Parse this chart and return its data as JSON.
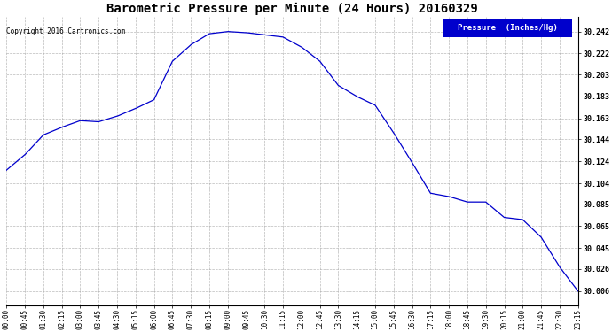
{
  "title": "Barometric Pressure per Minute (24 Hours) 20160329",
  "copyright": "Copyright 2016 Cartronics.com",
  "legend_label": "Pressure  (Inches/Hg)",
  "line_color": "#0000CC",
  "bg_color": "#ffffff",
  "grid_color": "#aaaaaa",
  "legend_bg": "#0000CC",
  "legend_text_color": "#ffffff",
  "y_ticks": [
    30.006,
    30.026,
    30.045,
    30.065,
    30.085,
    30.104,
    30.124,
    30.144,
    30.163,
    30.183,
    30.203,
    30.222,
    30.242
  ],
  "ylim": [
    29.993,
    30.255
  ],
  "x_tick_labels": [
    "00:00",
    "00:45",
    "01:30",
    "02:15",
    "03:00",
    "03:45",
    "04:30",
    "05:15",
    "06:00",
    "06:45",
    "07:30",
    "08:15",
    "09:00",
    "09:45",
    "10:30",
    "11:15",
    "12:00",
    "12:45",
    "13:30",
    "14:15",
    "15:00",
    "15:45",
    "16:30",
    "17:15",
    "18:00",
    "18:45",
    "19:30",
    "20:15",
    "21:00",
    "21:45",
    "22:30",
    "23:15"
  ],
  "keyframe_times": [
    0,
    45,
    90,
    135,
    180,
    225,
    270,
    315,
    360,
    405,
    450,
    495,
    540,
    585,
    630,
    675,
    720,
    765,
    810,
    855,
    900,
    945,
    990,
    1035,
    1080,
    1125,
    1170,
    1215,
    1260,
    1305,
    1350,
    1395
  ],
  "keyframe_values": [
    30.116,
    30.13,
    30.148,
    30.155,
    30.161,
    30.16,
    30.165,
    30.172,
    30.18,
    30.215,
    30.23,
    30.24,
    30.242,
    30.241,
    30.239,
    30.237,
    30.228,
    30.215,
    30.193,
    30.183,
    30.175,
    30.15,
    30.123,
    30.095,
    30.092,
    30.087,
    30.087,
    30.073,
    30.071,
    30.055,
    30.028,
    30.006
  ]
}
